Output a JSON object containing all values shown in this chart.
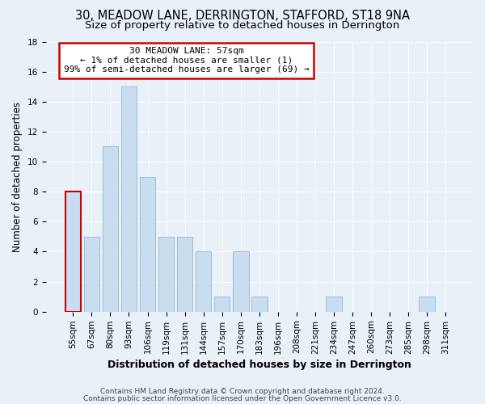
{
  "title1": "30, MEADOW LANE, DERRINGTON, STAFFORD, ST18 9NA",
  "title2": "Size of property relative to detached houses in Derrington",
  "xlabel": "Distribution of detached houses by size in Derrington",
  "ylabel": "Number of detached properties",
  "categories": [
    "55sqm",
    "67sqm",
    "80sqm",
    "93sqm",
    "106sqm",
    "119sqm",
    "131sqm",
    "144sqm",
    "157sqm",
    "170sqm",
    "183sqm",
    "196sqm",
    "208sqm",
    "221sqm",
    "234sqm",
    "247sqm",
    "260sqm",
    "273sqm",
    "285sqm",
    "298sqm",
    "311sqm"
  ],
  "values": [
    8,
    5,
    11,
    15,
    9,
    5,
    5,
    4,
    1,
    4,
    1,
    0,
    0,
    0,
    1,
    0,
    0,
    0,
    0,
    1,
    0
  ],
  "bar_color": "#c8ddf0",
  "bar_edge_color": "#a0bcd8",
  "highlight_bar_index": 0,
  "highlight_edge_color": "#cc0000",
  "annotation_line1": "30 MEADOW LANE: 57sqm",
  "annotation_line2": "← 1% of detached houses are smaller (1)",
  "annotation_line3": "99% of semi-detached houses are larger (69) →",
  "annotation_box_edge_color": "#cc0000",
  "ylim": [
    0,
    18
  ],
  "yticks": [
    0,
    2,
    4,
    6,
    8,
    10,
    12,
    14,
    16,
    18
  ],
  "footer1": "Contains HM Land Registry data © Crown copyright and database right 2024.",
  "footer2": "Contains public sector information licensed under the Open Government Licence v3.0.",
  "background_color": "#e8f0f8",
  "plot_bg_color": "#e8f0f8",
  "title1_fontsize": 10.5,
  "title2_fontsize": 9.5,
  "xlabel_fontsize": 9,
  "ylabel_fontsize": 8.5,
  "tick_fontsize": 7.5,
  "annotation_fontsize": 8,
  "footer_fontsize": 6.5
}
